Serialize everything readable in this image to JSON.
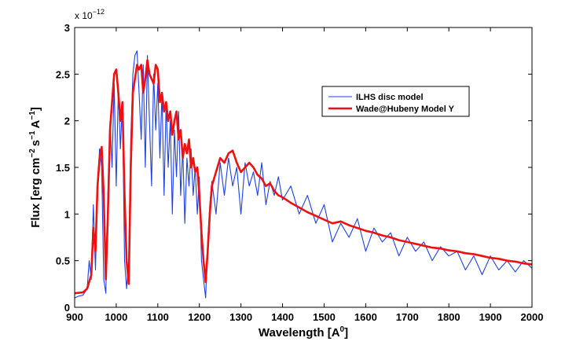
{
  "chart_data": {
    "type": "line",
    "xlabel": [
      "Wavelength [A",
      "0",
      "]"
    ],
    "ylabel": [
      "Flux [erg cm",
      "−2",
      "s",
      "−1",
      "A",
      "−1",
      "]"
    ],
    "y_multiplier": [
      "x 10",
      "−12"
    ],
    "xlim": [
      900,
      2000
    ],
    "xticks": [
      900,
      1000,
      1100,
      1200,
      1300,
      1400,
      1500,
      1600,
      1700,
      1800,
      1900,
      2000
    ],
    "ylim": [
      0,
      3
    ],
    "yticks": [
      0,
      0.5,
      1,
      1.5,
      2,
      2.5,
      3
    ],
    "grid": false,
    "series": [
      {
        "name": "ILHS disc model",
        "color": "#2040e0",
        "x": [
          900,
          910,
          920,
          930,
          935,
          940,
          945,
          950,
          955,
          960,
          965,
          970,
          975,
          980,
          985,
          990,
          995,
          1000,
          1005,
          1010,
          1015,
          1020,
          1025,
          1030,
          1035,
          1040,
          1045,
          1050,
          1055,
          1060,
          1065,
          1070,
          1075,
          1080,
          1085,
          1090,
          1095,
          1100,
          1105,
          1110,
          1115,
          1120,
          1125,
          1130,
          1135,
          1140,
          1145,
          1150,
          1155,
          1160,
          1165,
          1170,
          1175,
          1180,
          1185,
          1190,
          1195,
          1200,
          1205,
          1210,
          1215,
          1220,
          1225,
          1230,
          1240,
          1250,
          1260,
          1270,
          1280,
          1290,
          1300,
          1310,
          1320,
          1330,
          1340,
          1350,
          1360,
          1370,
          1380,
          1390,
          1400,
          1420,
          1440,
          1460,
          1480,
          1500,
          1520,
          1540,
          1560,
          1580,
          1600,
          1620,
          1640,
          1660,
          1680,
          1700,
          1720,
          1740,
          1760,
          1780,
          1800,
          1820,
          1840,
          1860,
          1880,
          1900,
          1920,
          1940,
          1960,
          1980,
          2000
        ],
        "values": [
          0.1,
          0.12,
          0.13,
          0.2,
          0.5,
          0.3,
          1.1,
          0.4,
          1.3,
          1.7,
          1.5,
          0.3,
          0.15,
          1.2,
          2.0,
          1.5,
          2.4,
          1.3,
          2.35,
          1.7,
          2.2,
          0.5,
          0.2,
          0.5,
          1.8,
          2.5,
          2.7,
          2.75,
          2.3,
          1.8,
          2.6,
          1.5,
          2.7,
          2.0,
          1.3,
          2.5,
          1.9,
          2.4,
          1.6,
          2.3,
          1.2,
          2.2,
          1.5,
          2.0,
          1.0,
          1.9,
          1.4,
          2.1,
          1.2,
          1.7,
          0.9,
          1.6,
          1.3,
          1.7,
          1.2,
          1.5,
          1.0,
          1.4,
          0.5,
          0.3,
          0.1,
          0.7,
          1.1,
          1.35,
          1.0,
          1.55,
          1.2,
          1.6,
          1.3,
          1.5,
          1.0,
          1.55,
          1.3,
          1.45,
          1.2,
          1.55,
          1.1,
          1.35,
          1.2,
          1.4,
          1.15,
          1.3,
          1.0,
          1.2,
          0.9,
          1.1,
          0.7,
          0.9,
          0.75,
          0.95,
          0.6,
          0.85,
          0.7,
          0.8,
          0.55,
          0.75,
          0.6,
          0.7,
          0.5,
          0.65,
          0.55,
          0.6,
          0.4,
          0.55,
          0.35,
          0.55,
          0.4,
          0.5,
          0.38,
          0.5,
          0.42
        ]
      },
      {
        "name": "Wade@Hubeny Model Y",
        "color": "#ee1111",
        "x": [
          900,
          920,
          930,
          940,
          945,
          950,
          955,
          960,
          965,
          970,
          975,
          980,
          985,
          990,
          995,
          1000,
          1005,
          1010,
          1015,
          1020,
          1025,
          1030,
          1035,
          1040,
          1045,
          1050,
          1055,
          1060,
          1065,
          1070,
          1075,
          1080,
          1085,
          1090,
          1095,
          1100,
          1105,
          1110,
          1115,
          1120,
          1125,
          1130,
          1135,
          1140,
          1145,
          1150,
          1155,
          1160,
          1165,
          1170,
          1175,
          1180,
          1185,
          1190,
          1195,
          1200,
          1205,
          1210,
          1215,
          1220,
          1225,
          1230,
          1240,
          1250,
          1260,
          1270,
          1280,
          1290,
          1300,
          1310,
          1320,
          1330,
          1340,
          1350,
          1360,
          1370,
          1380,
          1390,
          1400,
          1420,
          1440,
          1460,
          1480,
          1500,
          1520,
          1540,
          1560,
          1580,
          1600,
          1620,
          1640,
          1660,
          1680,
          1700,
          1720,
          1740,
          1760,
          1780,
          1800,
          1820,
          1840,
          1860,
          1880,
          1900,
          1920,
          1940,
          1960,
          1980,
          2000
        ],
        "values": [
          0.15,
          0.16,
          0.2,
          0.35,
          0.85,
          0.6,
          1.3,
          1.6,
          1.72,
          1.2,
          0.3,
          1.0,
          1.9,
          2.2,
          2.5,
          2.55,
          2.3,
          2.0,
          2.2,
          1.2,
          0.5,
          0.25,
          1.5,
          2.3,
          2.45,
          2.6,
          2.55,
          2.6,
          2.3,
          2.45,
          2.65,
          2.5,
          2.45,
          2.4,
          2.6,
          2.55,
          2.2,
          2.3,
          2.1,
          2.2,
          2.0,
          2.1,
          1.85,
          2.0,
          2.1,
          1.8,
          1.9,
          1.6,
          1.75,
          1.65,
          1.8,
          1.5,
          1.6,
          1.45,
          1.5,
          1.2,
          0.8,
          0.5,
          0.27,
          0.6,
          1.0,
          1.3,
          1.45,
          1.6,
          1.55,
          1.65,
          1.68,
          1.55,
          1.45,
          1.5,
          1.55,
          1.5,
          1.42,
          1.38,
          1.3,
          1.33,
          1.25,
          1.2,
          1.18,
          1.12,
          1.07,
          1.02,
          0.98,
          0.94,
          0.9,
          0.92,
          0.88,
          0.85,
          0.82,
          0.8,
          0.77,
          0.75,
          0.72,
          0.7,
          0.68,
          0.66,
          0.64,
          0.63,
          0.61,
          0.6,
          0.58,
          0.57,
          0.55,
          0.53,
          0.52,
          0.5,
          0.49,
          0.47,
          0.46
        ]
      }
    ]
  }
}
